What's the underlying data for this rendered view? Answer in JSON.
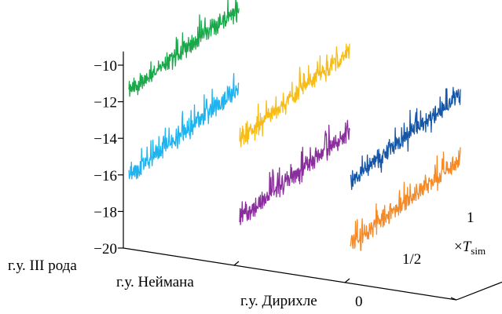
{
  "chart_data": {
    "type": "line",
    "subtype": "3d-waterfall",
    "zlim": [
      -20,
      -10
    ],
    "z_ticks": [
      "−20",
      "−18",
      "−16",
      "−14",
      "−12",
      "−10"
    ],
    "categories": [
      "г.у. III рода",
      "г.у. Неймана",
      "г.у. Дирихле"
    ],
    "t_ticks": [
      "0",
      "1/2",
      "1"
    ],
    "t_axis_label": {
      "prefix": "×",
      "main": "T",
      "sub": "sim"
    },
    "t_range": [
      0,
      1
    ],
    "series": [
      {
        "category": "г.у. III рода",
        "color": "#1aa84a",
        "z_start": -11.4,
        "z_end": -9.2
      },
      {
        "category": "г.у. III рода",
        "color": "#1fb4ef",
        "z_start": -16.0,
        "z_end": -13.6
      },
      {
        "category": "г.у. Неймана",
        "color": "#f7bd16",
        "z_start": -13.0,
        "z_end": -10.6
      },
      {
        "category": "г.у. Неймана",
        "color": "#8a2e9e",
        "z_start": -17.4,
        "z_end": -15.0
      },
      {
        "category": "г.у. Дирихле",
        "color": "#1557a6",
        "z_start": -14.4,
        "z_end": -12.0
      },
      {
        "category": "г.у. Дирихле",
        "color": "#f58a26",
        "z_start": -17.9,
        "z_end": -15.5
      }
    ]
  }
}
